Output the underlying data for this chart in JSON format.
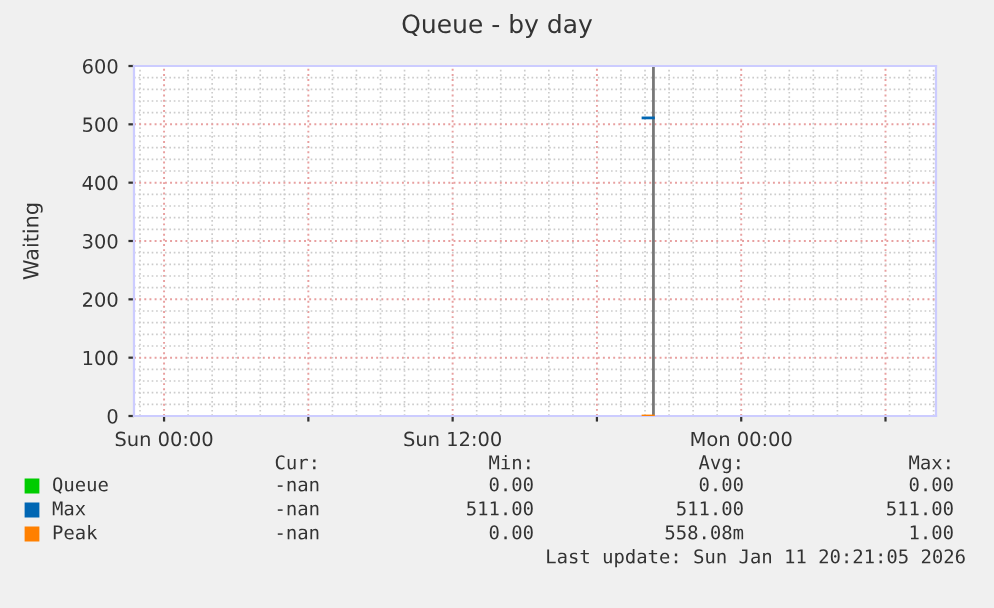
{
  "chart_data": {
    "type": "line",
    "title": "Queue - by day",
    "ylabel": "Waiting",
    "x": [
      "2026-01-11T19:55",
      "2026-01-11T20:21"
    ],
    "xlim": [
      "2026-01-10T22:45",
      "2026-01-12T08:06"
    ],
    "xticks": [
      {
        "value": "2026-01-11T00:00",
        "label": "Sun 00:00"
      },
      {
        "value": "2026-01-11T06:00",
        "label": null
      },
      {
        "value": "2026-01-11T12:00",
        "label": "Sun 12:00"
      },
      {
        "value": "2026-01-11T18:00",
        "label": null
      },
      {
        "value": "2026-01-12T00:00",
        "label": "Mon 00:00"
      },
      {
        "value": "2026-01-12T06:00",
        "label": null
      }
    ],
    "ylim": [
      0,
      600
    ],
    "yticks": [
      0,
      100,
      200,
      300,
      400,
      500,
      600
    ],
    "grid": true,
    "legend": "bottom",
    "series": [
      {
        "name": "Queue",
        "color": "#00cc00",
        "values": [
          null,
          null
        ]
      },
      {
        "name": "Max",
        "color": "#0066b3",
        "values": [
          511,
          511
        ]
      },
      {
        "name": "Peak",
        "color": "#ff8000",
        "values": [
          0,
          0
        ]
      }
    ],
    "ref_lines": [
      {
        "axis": "x",
        "value": "2026-01-11T20:21",
        "color": "#777777"
      }
    ],
    "annotations": [
      "Cur:",
      "Min:",
      "Avg:",
      "Max:",
      "-nan",
      "0.00",
      "0.00",
      "0.00",
      "-nan",
      "511.00",
      "511.00",
      "511.00",
      "-nan",
      "0.00",
      "558.08m",
      "1.00",
      "Last update: Sun Jan 11 20:21:05 2026"
    ]
  }
}
